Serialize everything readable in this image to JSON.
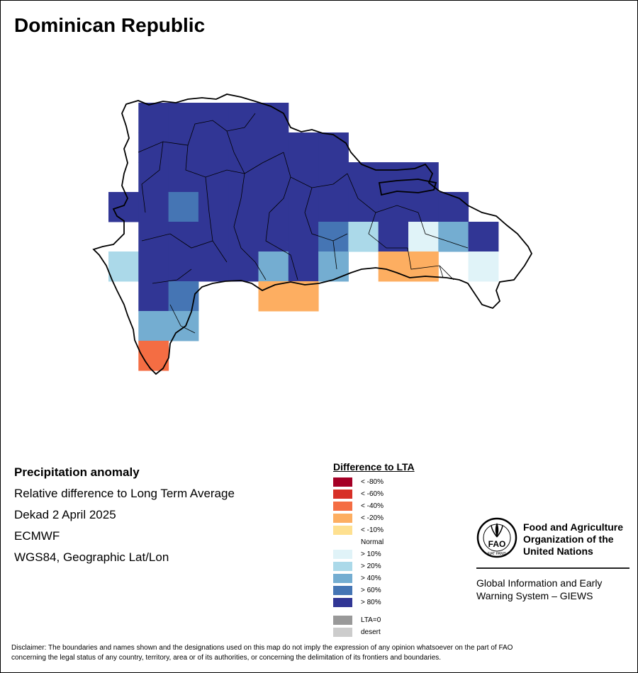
{
  "title": "Dominican Republic",
  "info": {
    "heading": "Precipitation anomaly",
    "line1": "Relative difference to Long Term Average",
    "line2": "Dekad 2 April 2025",
    "line3": "ECMWF",
    "line4": "WGS84, Geographic Lat/Lon"
  },
  "legend": {
    "title": "Difference to LTA",
    "items": [
      {
        "label": "< -80%",
        "color": "#a50026"
      },
      {
        "label": "< -60%",
        "color": "#d73027"
      },
      {
        "label": "< -40%",
        "color": "#f46d43"
      },
      {
        "label": "< -20%",
        "color": "#fdae61"
      },
      {
        "label": "< -10%",
        "color": "#fee090"
      },
      {
        "label": "Normal",
        "color": "#ffffff"
      },
      {
        "label": "> 10%",
        "color": "#e0f3f8"
      },
      {
        "label": "> 20%",
        "color": "#abd9e9"
      },
      {
        "label": "> 40%",
        "color": "#74add1"
      },
      {
        "label": "> 60%",
        "color": "#4575b4"
      },
      {
        "label": "> 80%",
        "color": "#313695"
      }
    ],
    "extra": [
      {
        "label": "LTA=0",
        "color": "#999999"
      },
      {
        "label": "desert",
        "color": "#cccccc"
      }
    ]
  },
  "fao": {
    "logo_text": "FAO",
    "logo_motto": "FIAT PANIS",
    "name_line1": "Food and Agriculture",
    "name_line2": "Organization of the",
    "name_line3": "United Nations",
    "sub_line1": "Global Information and Early",
    "sub_line2": "Warning System – GIEWS"
  },
  "disclaimer_line1": "Disclaimer: The boundaries and names shown and the designations used on this map do not imply the expression of any opinion whatsoever on the part of FAO",
  "disclaimer_line2": "concerning the legal status of any country, territory, area or of its authorities, or concerning the delimitation of its frontiers and boundaries.",
  "map": {
    "grid_rows": [
      {
        "lat": "19.75",
        "cells": [
          "",
          "",
          "",
          "",
          "",
          "",
          "",
          "",
          "",
          "",
          "",
          "",
          "",
          "",
          "",
          "",
          "",
          ""
        ]
      }
    ],
    "anomaly_cells": [
      {
        "row": 0,
        "col": 1,
        "class": "> 80%"
      },
      {
        "row": 0,
        "col": 2,
        "class": "> 80%"
      },
      {
        "row": 0,
        "col": 3,
        "class": "> 80%"
      },
      {
        "row": 0,
        "col": 4,
        "class": "> 80%"
      },
      {
        "row": 0,
        "col": 5,
        "class": "> 80%"
      },
      {
        "row": 1,
        "col": 1,
        "class": "> 80%"
      },
      {
        "row": 1,
        "col": 2,
        "class": "> 80%"
      },
      {
        "row": 1,
        "col": 3,
        "class": "> 80%"
      },
      {
        "row": 1,
        "col": 4,
        "class": "> 80%"
      },
      {
        "row": 1,
        "col": 5,
        "class": "> 80%"
      },
      {
        "row": 1,
        "col": 6,
        "class": "> 80%"
      },
      {
        "row": 1,
        "col": 7,
        "class": "> 80%"
      },
      {
        "row": 2,
        "col": 1,
        "class": "> 80%"
      },
      {
        "row": 2,
        "col": 2,
        "class": "> 80%"
      },
      {
        "row": 2,
        "col": 3,
        "class": "> 80%"
      },
      {
        "row": 2,
        "col": 4,
        "class": "> 80%"
      },
      {
        "row": 2,
        "col": 5,
        "class": "> 80%"
      },
      {
        "row": 2,
        "col": 6,
        "class": "> 80%"
      },
      {
        "row": 2,
        "col": 7,
        "class": "> 80%"
      },
      {
        "row": 2,
        "col": 8,
        "class": "> 80%"
      },
      {
        "row": 2,
        "col": 9,
        "class": "> 80%"
      },
      {
        "row": 2,
        "col": 10,
        "class": "> 80%"
      },
      {
        "row": 3,
        "col": 0,
        "class": "> 80%"
      },
      {
        "row": 3,
        "col": 1,
        "class": "> 80%"
      },
      {
        "row": 3,
        "col": 2,
        "class": "> 60%"
      },
      {
        "row": 3,
        "col": 3,
        "class": "> 80%"
      },
      {
        "row": 3,
        "col": 4,
        "class": "> 80%"
      },
      {
        "row": 3,
        "col": 5,
        "class": "> 80%"
      },
      {
        "row": 3,
        "col": 6,
        "class": "> 80%"
      },
      {
        "row": 3,
        "col": 7,
        "class": "> 80%"
      },
      {
        "row": 3,
        "col": 8,
        "class": "> 80%"
      },
      {
        "row": 3,
        "col": 9,
        "class": "> 80%"
      },
      {
        "row": 3,
        "col": 10,
        "class": "> 80%"
      },
      {
        "row": 3,
        "col": 11,
        "class": "> 80%"
      },
      {
        "row": 4,
        "col": 1,
        "class": "> 80%"
      },
      {
        "row": 4,
        "col": 2,
        "class": "> 80%"
      },
      {
        "row": 4,
        "col": 3,
        "class": "> 80%"
      },
      {
        "row": 4,
        "col": 4,
        "class": "> 80%"
      },
      {
        "row": 4,
        "col": 5,
        "class": "> 80%"
      },
      {
        "row": 4,
        "col": 6,
        "class": "> 80%"
      },
      {
        "row": 4,
        "col": 7,
        "class": "> 60%"
      },
      {
        "row": 4,
        "col": 8,
        "class": "> 20%"
      },
      {
        "row": 4,
        "col": 9,
        "class": "> 80%"
      },
      {
        "row": 4,
        "col": 10,
        "class": "> 10%"
      },
      {
        "row": 4,
        "col": 11,
        "class": "> 40%"
      },
      {
        "row": 4,
        "col": 12,
        "class": "> 80%"
      },
      {
        "row": 5,
        "col": 0,
        "class": "> 20%"
      },
      {
        "row": 5,
        "col": 1,
        "class": "> 80%"
      },
      {
        "row": 5,
        "col": 2,
        "class": "> 80%"
      },
      {
        "row": 5,
        "col": 3,
        "class": "> 80%"
      },
      {
        "row": 5,
        "col": 4,
        "class": "> 80%"
      },
      {
        "row": 5,
        "col": 5,
        "class": "> 40%"
      },
      {
        "row": 5,
        "col": 6,
        "class": "> 80%"
      },
      {
        "row": 5,
        "col": 7,
        "class": "> 40%"
      },
      {
        "row": 5,
        "col": 9,
        "class": "< -20%"
      },
      {
        "row": 5,
        "col": 10,
        "class": "< -20%"
      },
      {
        "row": 5,
        "col": 12,
        "class": "> 10%"
      },
      {
        "row": 6,
        "col": 1,
        "class": "> 80%"
      },
      {
        "row": 6,
        "col": 2,
        "class": "> 60%"
      },
      {
        "row": 6,
        "col": 5,
        "class": "< -20%"
      },
      {
        "row": 6,
        "col": 6,
        "class": "< -20%"
      },
      {
        "row": 7,
        "col": 1,
        "class": "> 40%"
      },
      {
        "row": 7,
        "col": 2,
        "class": "> 40%"
      },
      {
        "row": 8,
        "col": 1,
        "class": "< -40%"
      }
    ]
  }
}
